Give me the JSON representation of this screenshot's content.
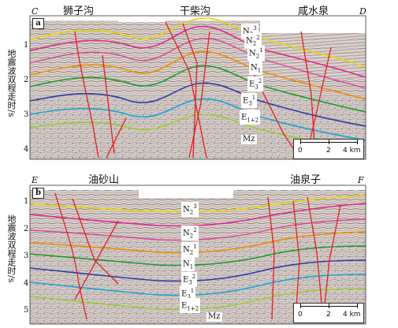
{
  "ylabel_top": "地震波双程走时/s",
  "ylabel_bottom": "地震波双程走时/s",
  "panel_a": {
    "tag": "a",
    "corner_left": "C",
    "corner_right": "D",
    "locations": [
      "狮子沟",
      "干柴沟",
      "咸水泉"
    ],
    "ticks": [
      "1",
      "2",
      "3",
      "4"
    ],
    "units": [
      {
        "base": "N",
        "sub": "2",
        "sup": "3"
      },
      {
        "base": "N",
        "sub": "2",
        "sup": "2"
      },
      {
        "base": "N",
        "sub": "2",
        "sup": "1"
      },
      {
        "base": "N",
        "sub": "1",
        "sup": ""
      },
      {
        "base": "E",
        "sub": "3",
        "sup": "2"
      },
      {
        "base": "E",
        "sub": "3",
        "sup": "1"
      },
      {
        "base": "E",
        "sub": "1+2",
        "sup": ""
      },
      {
        "base": "Mz",
        "sub": "",
        "sup": ""
      }
    ],
    "scale": {
      "labels": [
        "0",
        "2",
        "4 km"
      ]
    }
  },
  "panel_b": {
    "tag": "b",
    "corner_left": "E",
    "corner_right": "F",
    "locations": [
      "油砂山",
      "油泉子"
    ],
    "ticks": [
      "1",
      "2",
      "3",
      "4",
      "5"
    ],
    "units": [
      {
        "base": "N",
        "sub": "2",
        "sup": "3"
      },
      {
        "base": "N",
        "sub": "2",
        "sup": "2"
      },
      {
        "base": "N",
        "sub": "2",
        "sup": "1"
      },
      {
        "base": "N",
        "sub": "1",
        "sup": ""
      },
      {
        "base": "E",
        "sub": "3",
        "sup": "2"
      },
      {
        "base": "E",
        "sub": "3",
        "sup": "1"
      },
      {
        "base": "E",
        "sub": "1+2",
        "sup": ""
      },
      {
        "base": "Mz",
        "sub": "",
        "sup": ""
      }
    ],
    "scale": {
      "labels": [
        "0",
        "2",
        "4 km"
      ]
    }
  },
  "colors": {
    "N23": "#e8d400",
    "N22": "#e0248c",
    "N21": "#f08a00",
    "N1": "#1a9a2a",
    "E32": "#2a3aa8",
    "E31": "#19a3d8",
    "E12": "#9acd32",
    "fault": "#e02020"
  }
}
